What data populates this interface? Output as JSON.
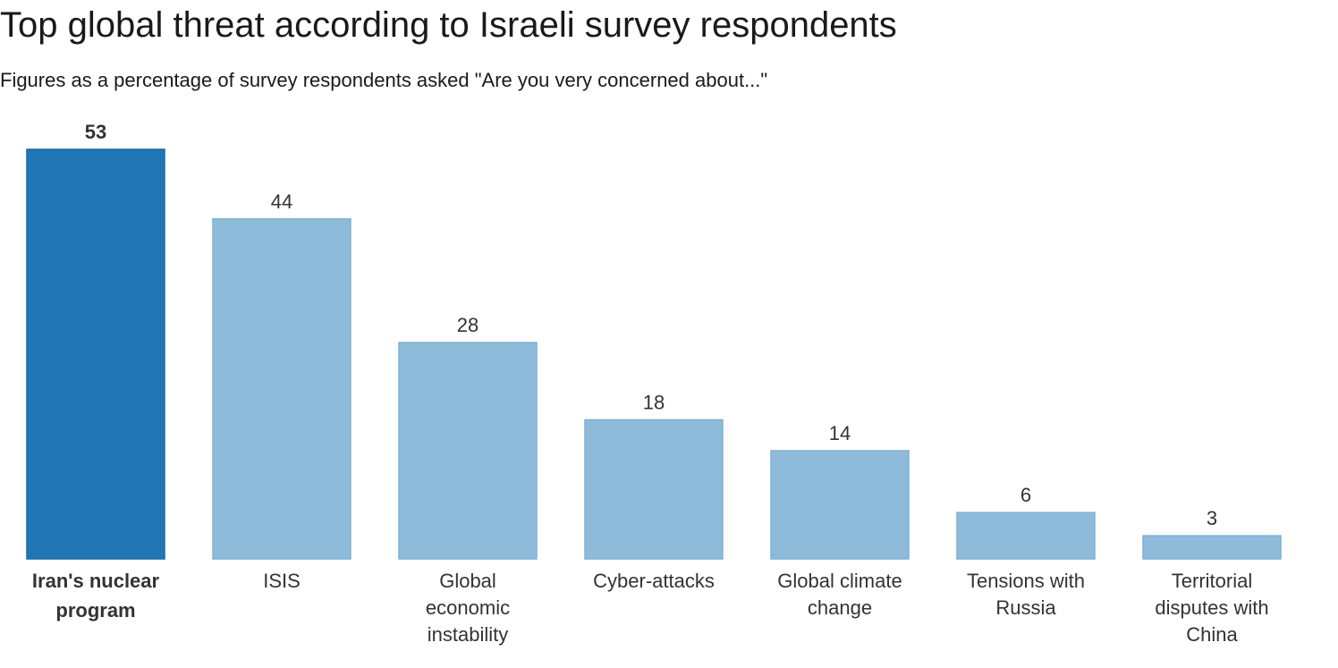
{
  "title": "Top global threat according to Israeli survey respondents",
  "subtitle": "Figures as a percentage of survey respondents asked \"Are you very concerned about...\"",
  "colors": {
    "highlight": "#2077b4",
    "highlight_stroke": "#1a6aa6",
    "normal": "#8fbbda",
    "normal_stroke": "#7eb0d3",
    "text": "#333333"
  },
  "chart_data": {
    "type": "bar",
    "title": "Top global threat according to Israeli survey respondents",
    "subtitle": "Figures as a percentage of survey respondents asked \"Are you very concerned about...\"",
    "categories": [
      [
        "Iran's nuclear",
        "program"
      ],
      [
        "ISIS"
      ],
      [
        "Global",
        "economic",
        "instability"
      ],
      [
        "Cyber-attacks"
      ],
      [
        "Global climate",
        "change"
      ],
      [
        "Tensions with",
        "Russia"
      ],
      [
        "Territorial",
        "disputes with",
        "China"
      ]
    ],
    "values": [
      53,
      44,
      28,
      18,
      14,
      6,
      3
    ],
    "highlighted_index": 0,
    "ylim": [
      0,
      53
    ],
    "grid": false,
    "legend": "none",
    "xlabel": "",
    "ylabel": ""
  }
}
